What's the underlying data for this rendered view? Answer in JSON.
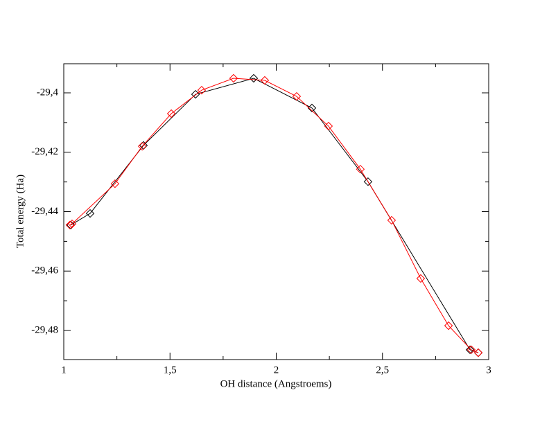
{
  "chart_data": {
    "type": "line",
    "x_label": "OH distance (Angstroems)",
    "y_label": "Total energy (Ha)",
    "xlim": [
      1,
      3
    ],
    "ylim": [
      -29.4898,
      -29.3902
    ],
    "xticks": [
      1,
      {
        "value": 1.5,
        "label": "1,5"
      },
      2,
      {
        "value": 2.5,
        "label": "2,5"
      },
      3
    ],
    "yticks": [
      {
        "value": -29.48,
        "label": "-29,48"
      },
      {
        "value": -29.46,
        "label": "-29,46"
      },
      {
        "value": -29.44,
        "label": "-29,44"
      },
      {
        "value": -29.42,
        "label": "-29,42"
      },
      {
        "value": -29.4,
        "label": "-29,4"
      }
    ],
    "marker": "diamond",
    "series": [
      {
        "color": "#000000",
        "x": [
          1.033,
          1.124,
          1.375,
          1.62,
          1.894,
          2.168,
          2.432,
          2.912,
          2.951
        ],
        "values": [
          -29.4445,
          -29.4406,
          -29.4177,
          -29.4005,
          -29.3951,
          -29.4051,
          -29.4299,
          -29.4865,
          -29.4875
        ]
      },
      {
        "color": "#ff0000",
        "x": [
          1.029,
          1.039,
          1.241,
          1.369,
          1.506,
          1.649,
          1.799,
          1.946,
          2.096,
          2.246,
          2.396,
          2.543,
          2.68,
          2.811,
          2.918,
          2.951
        ],
        "values": [
          -29.4445,
          -29.4441,
          -29.4306,
          -29.418,
          -29.407,
          -29.3991,
          -29.3951,
          -29.3958,
          -29.4012,
          -29.4112,
          -29.4257,
          -29.4429,
          -29.4625,
          -29.4784,
          -29.4865,
          -29.4875
        ]
      }
    ]
  }
}
